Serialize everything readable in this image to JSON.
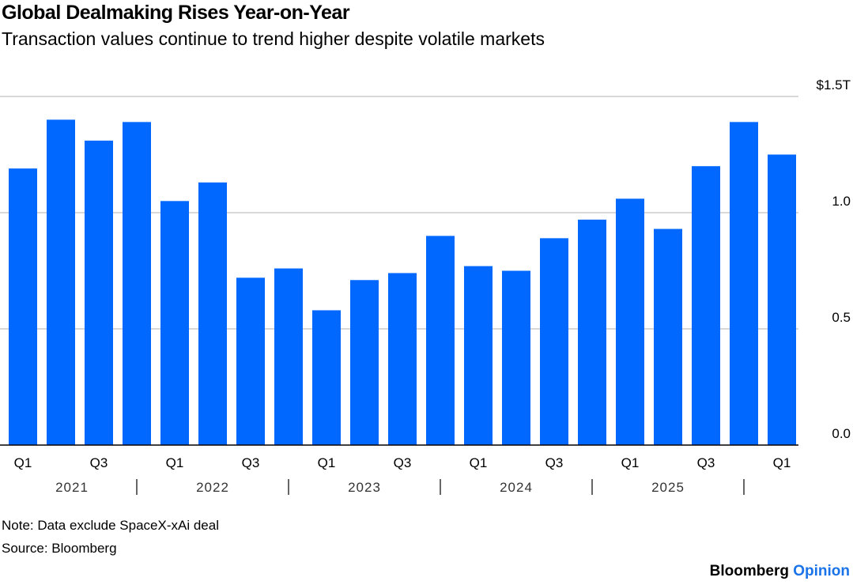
{
  "title": "Global Dealmaking Rises Year-on-Year",
  "subtitle": "Transaction values continue to trend higher despite volatile markets",
  "note": "Note: Data exclude SpaceX-xAi deal",
  "source": "Source: Bloomberg",
  "brand": {
    "name": "Bloomberg",
    "suffix": "Opinion"
  },
  "colors": {
    "bar": "#0068ff",
    "grid": "#cccccc",
    "brand_accent": "#1a73e8"
  },
  "chart_data": {
    "type": "bar",
    "categories": [
      "2021 Q1",
      "2021 Q2",
      "2021 Q3",
      "2021 Q4",
      "2022 Q1",
      "2022 Q2",
      "2022 Q3",
      "2022 Q4",
      "2023 Q1",
      "2023 Q2",
      "2023 Q3",
      "2023 Q4",
      "2024 Q1",
      "2024 Q2",
      "2024 Q3",
      "2024 Q4",
      "2025 Q1",
      "2025 Q2",
      "2025 Q3",
      "2025 Q4",
      "2026 Q1"
    ],
    "values": [
      1.19,
      1.4,
      1.31,
      1.39,
      1.05,
      1.13,
      0.72,
      0.76,
      0.58,
      0.71,
      0.74,
      0.9,
      0.77,
      0.75,
      0.89,
      0.97,
      1.06,
      0.93,
      1.2,
      1.39,
      1.25
    ],
    "unit": "trillion USD",
    "ylim": [
      0,
      1.5
    ],
    "yticks": [
      {
        "v": 0,
        "label": "0.0"
      },
      {
        "v": 0.5,
        "label": "0.5"
      },
      {
        "v": 1.0,
        "label": "1.0"
      },
      {
        "v": 1.5,
        "label": "$1.5T"
      }
    ],
    "xtick_labels": [
      {
        "i": 0,
        "label": "Q1"
      },
      {
        "i": 2,
        "label": "Q3"
      },
      {
        "i": 4,
        "label": "Q1"
      },
      {
        "i": 6,
        "label": "Q3"
      },
      {
        "i": 8,
        "label": "Q1"
      },
      {
        "i": 10,
        "label": "Q3"
      },
      {
        "i": 12,
        "label": "Q1"
      },
      {
        "i": 14,
        "label": "Q3"
      },
      {
        "i": 16,
        "label": "Q1"
      },
      {
        "i": 18,
        "label": "Q3"
      },
      {
        "i": 20,
        "label": "Q1"
      }
    ],
    "year_labels": [
      "2021",
      "2022",
      "2023",
      "2024",
      "2025"
    ],
    "grid": true,
    "y_axis_side": "right",
    "legend": "none"
  }
}
